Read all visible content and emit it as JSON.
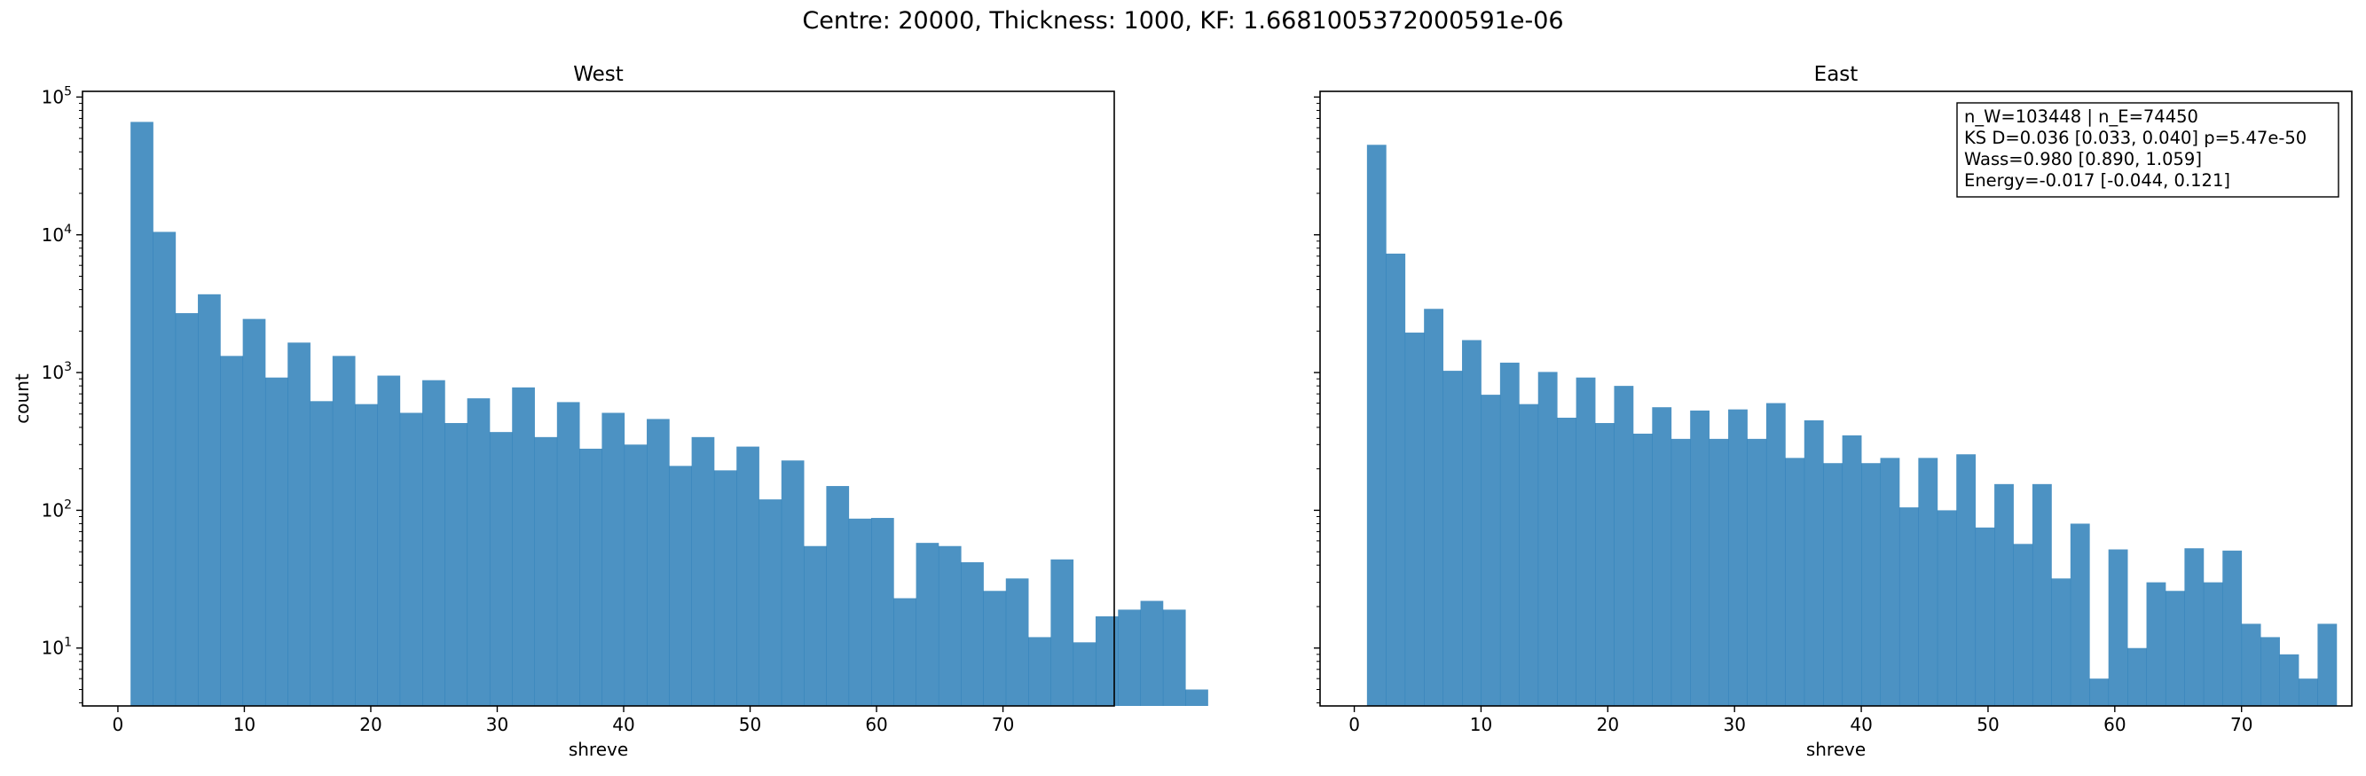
{
  "suptitle": "Centre: 20000, Thickness: 1000, KF: 1.6681005372000591e-06",
  "colors": {
    "bar": "#1f77b4",
    "bar_alpha": 0.8,
    "axes": "#000000"
  },
  "chart_data": [
    {
      "type": "bar",
      "title": "West",
      "xlabel": "shreve",
      "ylabel": "count",
      "yscale": "log",
      "xlim": [
        -2.8,
        78.8
      ],
      "ylim": [
        3.8,
        110000
      ],
      "xticks": [
        0,
        10,
        20,
        30,
        40,
        50,
        60,
        70
      ],
      "yticks": [
        10,
        100,
        1000,
        10000,
        100000
      ],
      "ytick_labels": [
        [
          "10",
          "1"
        ],
        [
          "10",
          "2"
        ],
        [
          "10",
          "3"
        ],
        [
          "10",
          "4"
        ],
        [
          "10",
          "5"
        ]
      ],
      "bin_start": 1,
      "bin_width": 1.775,
      "values": [
        66000,
        10500,
        2700,
        3700,
        1320,
        2450,
        920,
        1650,
        620,
        1320,
        590,
        950,
        510,
        880,
        430,
        650,
        370,
        780,
        340,
        610,
        280,
        510,
        300,
        460,
        210,
        340,
        195,
        290,
        120,
        230,
        55,
        150,
        87,
        88,
        23,
        58,
        55,
        42,
        26,
        32,
        12,
        44,
        11,
        17,
        19,
        22,
        19,
        5
      ]
    },
    {
      "type": "bar",
      "title": "East",
      "xlabel": "shreve",
      "ylabel": "",
      "yscale": "log",
      "xlim": [
        -2.7,
        78.7
      ],
      "ylim": [
        3.8,
        110000
      ],
      "xticks": [
        0,
        10,
        20,
        30,
        40,
        50,
        60,
        70
      ],
      "yticks": [
        10,
        100,
        1000,
        10000,
        100000
      ],
      "ytick_labels": [],
      "bin_start": 1,
      "bin_width": 1.5,
      "values": [
        45000,
        7300,
        1950,
        2900,
        1030,
        1720,
        690,
        1180,
        590,
        1010,
        470,
        920,
        430,
        800,
        360,
        560,
        330,
        530,
        330,
        540,
        330,
        600,
        240,
        450,
        220,
        350,
        220,
        240,
        105,
        240,
        100,
        255,
        75,
        155,
        57,
        155,
        32,
        80,
        6,
        52,
        10,
        30,
        26,
        53,
        30,
        51,
        15,
        12,
        9,
        6,
        15
      ],
      "stats_box": [
        "n_W=103448 | n_E=74450",
        "KS D=0.036 [0.033, 0.040]  p=5.47e-50",
        "Wass=0.980 [0.890, 1.059]",
        "Energy=-0.017 [-0.044, 0.121]"
      ]
    }
  ]
}
